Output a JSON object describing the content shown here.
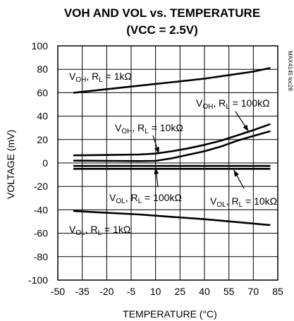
{
  "chart_data": {
    "type": "line",
    "title": "VOH AND VOL vs. TEMPERATURE",
    "subtitle": "(VCC = 2.5V)",
    "xlabel": "TEMPERATURE (°C)",
    "ylabel": "VOLTAGE (mV)",
    "xlim": [
      -50,
      85
    ],
    "ylim": [
      -100,
      100
    ],
    "xticks": [
      -50,
      -35,
      -20,
      -5,
      10,
      25,
      40,
      55,
      70,
      85
    ],
    "yticks": [
      100,
      80,
      60,
      40,
      20,
      0,
      -20,
      -40,
      -60,
      -80,
      -100
    ],
    "grid": true,
    "watermark": "MAX4145 toc28",
    "series": [
      {
        "name": "VOH, RL = 1kΩ",
        "x": [
          -40,
          -20,
          0,
          20,
          40,
          60,
          70,
          80
        ],
        "y": [
          60,
          63,
          66,
          69,
          72,
          76,
          78,
          81
        ]
      },
      {
        "name": "VOH, RL = 10kΩ",
        "x": [
          -40,
          -20,
          0,
          10,
          20,
          30,
          40,
          50,
          60,
          70,
          80
        ],
        "y": [
          6.5,
          6.8,
          7.2,
          8,
          10,
          12.5,
          15.5,
          19,
          23.5,
          28,
          33
        ]
      },
      {
        "name": "VOH, RL = 100kΩ",
        "x": [
          -40,
          -20,
          0,
          10,
          20,
          30,
          40,
          50,
          60,
          70,
          80
        ],
        "y": [
          2,
          1.8,
          1.6,
          1.8,
          4,
          7,
          10,
          14,
          19,
          23,
          27
        ]
      },
      {
        "name": "VOL, RL = 100kΩ",
        "x": [
          -40,
          80
        ],
        "y": [
          -2.5,
          -2.5
        ]
      },
      {
        "name": "VOL, RL = 10kΩ",
        "x": [
          -40,
          80
        ],
        "y": [
          -5,
          -5
        ]
      },
      {
        "name": "VOL, RL = 1kΩ",
        "x": [
          -40,
          -20,
          0,
          20,
          40,
          60,
          80
        ],
        "y": [
          -41,
          -42.5,
          -44,
          -46,
          -48,
          -50.5,
          -53
        ]
      }
    ],
    "annotations": [
      {
        "main": "V",
        "sub": "OH",
        "tail": ", R",
        "sub2": "L",
        "tail2": " = 1kΩ"
      },
      {
        "main": "V",
        "sub": "OH",
        "tail": ", R",
        "sub2": "L",
        "tail2": " = 10kΩ"
      },
      {
        "main": "V",
        "sub": "OH",
        "tail": ", R",
        "sub2": "L",
        "tail2": " = 100kΩ"
      },
      {
        "main": "V",
        "sub": "OL",
        "tail": ", R",
        "sub2": "L",
        "tail2": " = 100kΩ"
      },
      {
        "main": "V",
        "sub": "OL",
        "tail": ", R",
        "sub2": "L",
        "tail2": " = 10kΩ"
      },
      {
        "main": "V",
        "sub": "OL",
        "tail": ", R",
        "sub2": "L",
        "tail2": " = 1kΩ"
      }
    ]
  }
}
